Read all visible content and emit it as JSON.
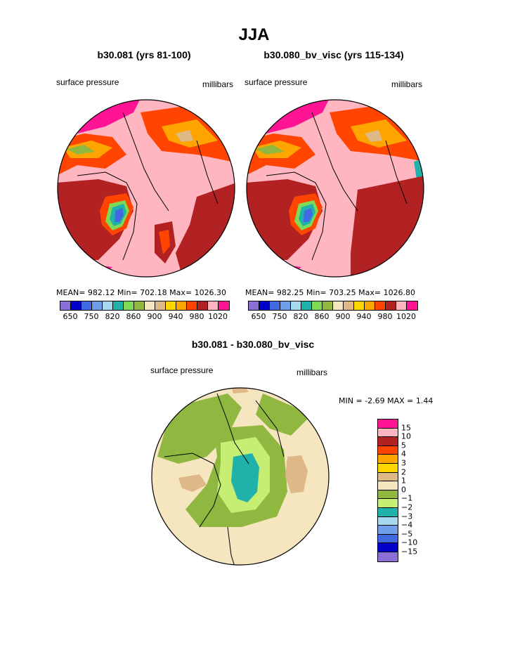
{
  "title": "JJA",
  "panels": [
    {
      "title": "b30.081 (yrs 81-100)",
      "field": "surface pressure",
      "units": "millibars",
      "stats": "MEAN= 982.12  Min= 702.18  Max= 1026.30"
    },
    {
      "title": "b30.080_bv_visc (yrs 115-134)",
      "field": "surface pressure",
      "units": "millibars",
      "stats": "MEAN= 982.25  Min= 703.25  Max= 1026.80"
    }
  ],
  "diff_panel": {
    "title": "b30.081 - b30.080_bv_visc",
    "field": "surface pressure",
    "units": "millibars",
    "stats": "MIN =   -2.69 MAX =   1.44"
  },
  "colorbar_pressure": {
    "colors": [
      "#8a6fd6",
      "#0000c8",
      "#4169e1",
      "#6f9de8",
      "#a6d8f0",
      "#20b2aa",
      "#7ed957",
      "#90b840",
      "#f5e6c0",
      "#deb887",
      "#ffd700",
      "#ffa500",
      "#ff4500",
      "#b22222",
      "#ffb6c1",
      "#ff1493"
    ],
    "labels": [
      "650",
      "750",
      "820",
      "860",
      "900",
      "940",
      "980",
      "1020"
    ]
  },
  "colorbar_diff": {
    "colors": [
      "#ff1493",
      "#ffb6c1",
      "#b22222",
      "#ff4500",
      "#ffa500",
      "#ffd700",
      "#deb887",
      "#f5e6c0",
      "#90b840",
      "#c6ee73",
      "#20b2aa",
      "#a6d8f0",
      "#6f9de8",
      "#4169e1",
      "#0000c8",
      "#8a6fd6"
    ],
    "labels": [
      "15",
      "10",
      "5",
      "4",
      "3",
      "2",
      "1",
      "0",
      "−1",
      "−2",
      "−3",
      "−4",
      "−5",
      "−10",
      "−15"
    ]
  }
}
